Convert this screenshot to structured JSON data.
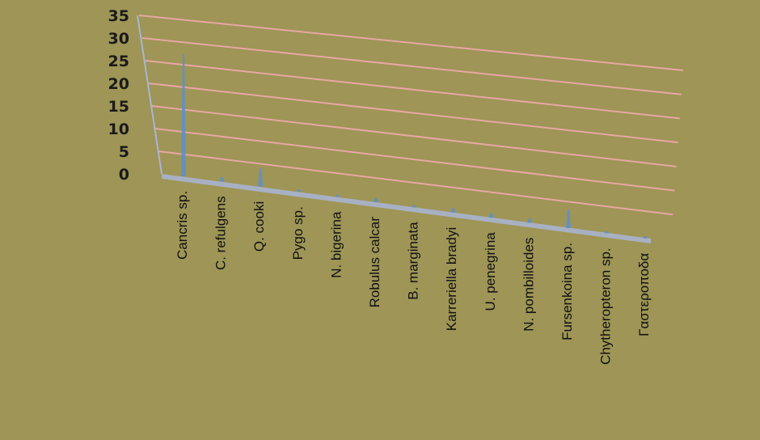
{
  "colors": {
    "background": "#9e9556",
    "gridline": "#e8a7a3",
    "bar": "#5b8fd1",
    "floor": "#a9b6d6"
  },
  "chart_data": {
    "type": "bar",
    "title": "",
    "xlabel": "",
    "ylabel": "",
    "ylim": [
      0,
      35
    ],
    "yticks": [
      0,
      5,
      10,
      15,
      20,
      25,
      30,
      35
    ],
    "grid": true,
    "legend": "none",
    "categories": [
      "Cancris sp.",
      "C. refulgens",
      "Q. cooki",
      "Pygo sp.",
      "N. bigerina",
      "Robulus calcar",
      "B. marginata",
      "Karreriella bradyi",
      "U. penegrina",
      "N. pombilloides",
      "Fursenkoina sp.",
      "Chytheropteron sp.",
      "Γαστεροποδα"
    ],
    "series": [
      {
        "values": [
          27,
          1,
          4,
          0.5,
          0.5,
          1,
          0.5,
          1,
          1,
          1,
          4,
          0.5,
          0.5
        ]
      }
    ]
  }
}
